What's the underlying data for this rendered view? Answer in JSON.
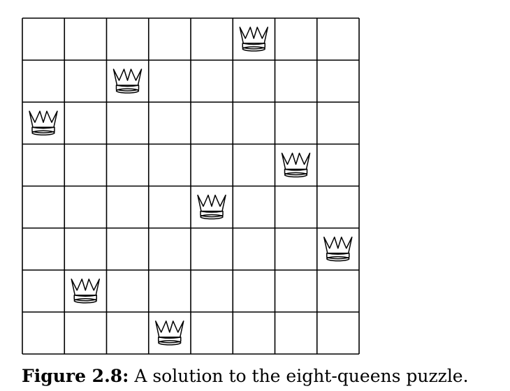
{
  "board": {
    "size": 8,
    "piece_icon": "queen-icon",
    "queens": [
      {
        "row": 0,
        "col": 5
      },
      {
        "row": 1,
        "col": 2
      },
      {
        "row": 2,
        "col": 0
      },
      {
        "row": 3,
        "col": 6
      },
      {
        "row": 4,
        "col": 4
      },
      {
        "row": 5,
        "col": 7
      },
      {
        "row": 6,
        "col": 1
      },
      {
        "row": 7,
        "col": 3
      }
    ]
  },
  "caption": {
    "label": "Figure 2.8:",
    "text": " A solution to the eight-queens puzzle."
  }
}
